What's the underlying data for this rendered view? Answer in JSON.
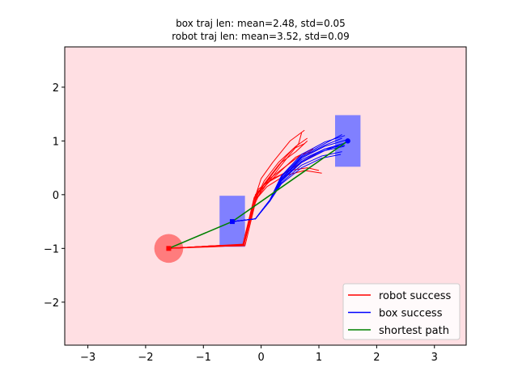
{
  "chart_data": {
    "type": "line",
    "title_lines": [
      "box traj len: mean=2.48, std=0.05",
      "robot traj len: mean=3.52, std=0.09"
    ],
    "xlim": [
      -3.4,
      3.55
    ],
    "ylim": [
      -2.8,
      2.75
    ],
    "xticks": [
      -3,
      -2,
      -1,
      0,
      1,
      2,
      3
    ],
    "yticks": [
      -2,
      -1,
      0,
      1,
      2
    ],
    "xtick_labels": [
      "−3",
      "−2",
      "−1",
      "0",
      "1",
      "2",
      "3"
    ],
    "ytick_labels": [
      "−2",
      "−1",
      "0",
      "1",
      "2"
    ],
    "grid": false,
    "background_color": "#ffdfe3",
    "legend_position": "lower-right",
    "legend": [
      {
        "label": "robot success",
        "color": "#ff0000"
      },
      {
        "label": "box success",
        "color": "#0000ff"
      },
      {
        "label": "shortest path",
        "color": "#008000"
      }
    ],
    "shapes": {
      "robot_start": {
        "cx": -1.6,
        "cy": -1.0,
        "r": 0.25,
        "color": "#ff6b6b"
      },
      "box_start": {
        "x0": -0.72,
        "x1": -0.28,
        "y0": -0.97,
        "y1": -0.02,
        "color": "#8080ff"
      },
      "box_goal": {
        "x0": 1.28,
        "x1": 1.72,
        "y0": 0.52,
        "y1": 1.48,
        "color": "#8080ff"
      }
    },
    "markers": {
      "robot_start": {
        "x": -1.6,
        "y": -1.0,
        "shape": "square",
        "color": "#ff0000"
      },
      "box_start": {
        "x": -0.5,
        "y": -0.5,
        "shape": "square",
        "color": "#0000ff"
      },
      "box_goal": {
        "x": 1.5,
        "y": 1.0,
        "shape": "circle",
        "color": "#0000ff"
      }
    },
    "series": [
      {
        "name": "shortest path",
        "color": "#008000",
        "x": [
          -1.6,
          -0.5,
          1.5
        ],
        "y": [
          -1.0,
          -0.5,
          1.0
        ]
      },
      {
        "name": "robot success",
        "color": "#ff0000",
        "trajectories": [
          {
            "x": [
              -1.6,
              -0.8,
              -0.3,
              -0.15,
              0.0,
              0.2,
              0.5,
              0.75
            ],
            "y": [
              -1.0,
              -0.95,
              -0.95,
              -0.2,
              0.3,
              0.6,
              1.0,
              1.2
            ]
          },
          {
            "x": [
              -1.6,
              -0.8,
              -0.3,
              -0.1,
              0.05,
              0.3,
              0.6,
              0.8
            ],
            "y": [
              -1.0,
              -0.96,
              -0.93,
              -0.1,
              0.25,
              0.6,
              0.9,
              1.05
            ]
          },
          {
            "x": [
              -1.6,
              -0.8,
              -0.32,
              -0.12,
              0.1,
              0.35,
              0.65,
              0.7
            ],
            "y": [
              -1.0,
              -0.97,
              -0.94,
              -0.05,
              0.2,
              0.55,
              0.95,
              1.15
            ]
          },
          {
            "x": [
              -1.6,
              -0.8,
              -0.3,
              -0.08,
              0.15,
              0.4,
              0.7,
              0.95
            ],
            "y": [
              -1.0,
              -0.95,
              -0.92,
              0.0,
              0.25,
              0.4,
              0.6,
              0.75
            ]
          },
          {
            "x": [
              -1.6,
              -0.8,
              -0.3,
              -0.1,
              0.1,
              0.4,
              0.75,
              1.05
            ],
            "y": [
              -1.0,
              -0.96,
              -0.95,
              -0.1,
              0.15,
              0.35,
              0.45,
              0.4
            ]
          },
          {
            "x": [
              -1.6,
              -0.8,
              -0.3,
              -0.05,
              0.2,
              0.5,
              0.8,
              1.0
            ],
            "y": [
              -1.0,
              -0.95,
              -0.93,
              0.1,
              0.3,
              0.45,
              0.5,
              0.45
            ]
          },
          {
            "x": [
              -1.6,
              -0.8,
              -0.28,
              -0.1,
              0.05,
              0.3,
              0.55,
              0.75
            ],
            "y": [
              -1.0,
              -0.96,
              -0.95,
              -0.15,
              0.2,
              0.55,
              0.85,
              0.95
            ]
          },
          {
            "x": [
              -1.6,
              -0.8,
              -0.3,
              -0.12,
              0.1,
              0.35,
              0.6,
              0.8
            ],
            "y": [
              -1.0,
              -0.95,
              -0.94,
              -0.05,
              0.25,
              0.6,
              0.8,
              1.0
            ]
          },
          {
            "x": [
              -1.6,
              -0.8,
              -0.3,
              -0.1,
              0.1,
              0.35,
              0.6,
              0.9
            ],
            "y": [
              -1.0,
              -0.96,
              -0.93,
              -0.1,
              0.2,
              0.45,
              0.7,
              0.85
            ]
          },
          {
            "x": [
              -1.6,
              -0.8,
              -0.3,
              -0.1,
              0.15,
              0.45,
              0.7,
              0.9
            ],
            "y": [
              -1.0,
              -0.95,
              -0.94,
              0.0,
              0.3,
              0.55,
              0.75,
              0.8
            ]
          }
        ]
      },
      {
        "name": "box success",
        "color": "#0000ff",
        "trajectories": [
          {
            "x": [
              -0.5,
              -0.1,
              0.15,
              0.35,
              0.7,
              1.1,
              1.45
            ],
            "y": [
              -0.5,
              -0.45,
              -0.1,
              0.35,
              0.75,
              0.98,
              1.1
            ]
          },
          {
            "x": [
              -0.5,
              -0.1,
              0.15,
              0.35,
              0.7,
              1.1,
              1.4
            ],
            "y": [
              -0.5,
              -0.45,
              -0.1,
              0.3,
              0.7,
              0.92,
              1.05
            ]
          },
          {
            "x": [
              -0.5,
              -0.1,
              0.15,
              0.35,
              0.7,
              1.1,
              1.5
            ],
            "y": [
              -0.5,
              -0.45,
              -0.1,
              0.3,
              0.65,
              0.85,
              0.98
            ]
          },
          {
            "x": [
              -0.5,
              -0.1,
              0.15,
              0.35,
              0.7,
              1.05,
              1.42
            ],
            "y": [
              -0.5,
              -0.45,
              -0.12,
              0.25,
              0.6,
              0.8,
              0.95
            ]
          },
          {
            "x": [
              -0.5,
              -0.1,
              0.15,
              0.35,
              0.7,
              1.05,
              1.4
            ],
            "y": [
              -0.5,
              -0.45,
              -0.12,
              0.22,
              0.55,
              0.72,
              0.8
            ]
          },
          {
            "x": [
              -0.5,
              -0.1,
              0.15,
              0.35,
              0.7,
              1.1,
              1.45
            ],
            "y": [
              -0.5,
              -0.45,
              -0.1,
              0.28,
              0.62,
              0.85,
              0.92
            ]
          },
          {
            "x": [
              -0.5,
              -0.1,
              0.15,
              0.35,
              0.7,
              1.1,
              1.48
            ],
            "y": [
              -0.5,
              -0.45,
              -0.1,
              0.3,
              0.68,
              0.9,
              1.02
            ]
          },
          {
            "x": [
              -0.5,
              -0.1,
              0.15,
              0.35,
              0.7,
              1.1,
              1.4
            ],
            "y": [
              -0.5,
              -0.45,
              -0.1,
              0.33,
              0.72,
              0.95,
              1.12
            ]
          },
          {
            "x": [
              -0.5,
              -0.1,
              0.15,
              0.35,
              0.7,
              1.05,
              1.38
            ],
            "y": [
              -0.5,
              -0.45,
              -0.12,
              0.2,
              0.5,
              0.68,
              0.75
            ]
          },
          {
            "x": [
              -0.5,
              -0.1,
              0.15,
              0.35,
              0.7,
              1.1,
              1.44
            ],
            "y": [
              -0.5,
              -0.45,
              -0.1,
              0.27,
              0.6,
              0.82,
              0.9
            ]
          }
        ]
      }
    ]
  }
}
